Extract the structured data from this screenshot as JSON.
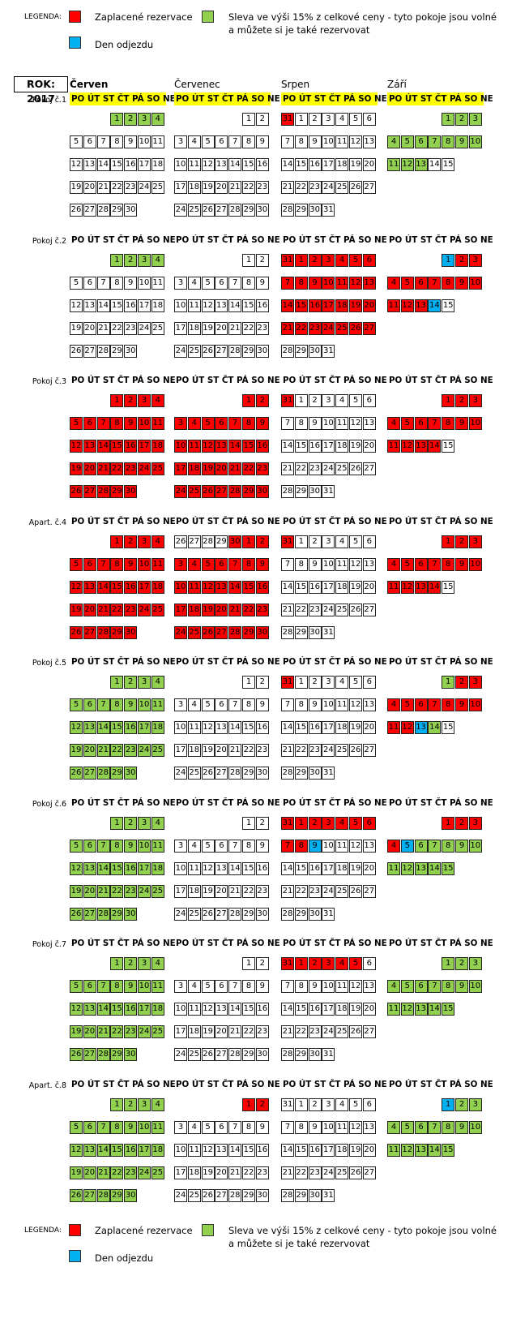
{
  "legend": {
    "label": "LEGENDA:",
    "paid": "Zaplacené rezervace",
    "discount_line1": "Sleva ve výši 15% z celkové ceny - tyto pokoje jsou volné",
    "discount_line2": "a můžete si je také rezervovat",
    "departure": "Den odjezdu"
  },
  "year_label": "ROK: 2017",
  "months": [
    "Červen",
    "Červenec",
    "Srpen",
    "Září"
  ],
  "weekday_header": "PO ÚT ST ČT PÁ SO NE",
  "colors": {
    "paid": "#ff0000",
    "discount": "#92d050",
    "departure": "#00b0f0",
    "free": "#ffffff",
    "header": "#ffff00"
  },
  "rooms": [
    {
      "label": "Pokoj č.1",
      "months": [
        {
          "d": "gggg",
          "p": ""
        },
        {
          "d": "",
          "p": ""
        },
        {
          "d": "",
          "p": "rrrb"
        },
        {
          "d": "ggggggggggggg",
          "p": ""
        }
      ]
    },
    {
      "label": "Pokoj č.2",
      "months": [
        {
          "d": "gggg",
          "p": ""
        },
        {
          "d": "",
          "p": ""
        },
        {
          "d": "rrrrrrrrrrrrrrrrrrrrrrrrrrr",
          "p": "rr"
        },
        {
          "d": "brrrrrrrrrrrrb",
          "p": ""
        }
      ]
    },
    {
      "label": "Pokoj č.3",
      "months": [
        {
          "d": "rrrrrrrrrrrrrrrrrrrrrrrrrrrrrr",
          "p": ""
        },
        {
          "d": "rrrrrrrrrrrrrrrrrrrrrrrrrrrrrr",
          "p": ""
        },
        {
          "d": "",
          "p": "r"
        },
        {
          "d": "rrrrrrrrrrrrrr",
          "p": ""
        }
      ]
    },
    {
      "label": "Apart. č.4",
      "months": [
        {
          "d": "rrrrrrrrrrrrrrrrrrrrrrrrrrrrrr",
          "p": ""
        },
        {
          "d": "rrrrrrrrrrrrrrrrrrrrrrrrrrrrrr",
          "p": "r"
        },
        {
          "d": "",
          "p": "r"
        },
        {
          "d": "rrrrrrrrrrrrrr",
          "p": ""
        }
      ]
    },
    {
      "label": "Pokoj č.5",
      "months": [
        {
          "d": "gggggggggggggggggggggggggggggg",
          "p": ""
        },
        {
          "d": "",
          "p": ""
        },
        {
          "d": "",
          "p": "rrrr"
        },
        {
          "d": "grrrrrrrrrrrbg",
          "p": ""
        }
      ]
    },
    {
      "label": "Pokoj č.6",
      "months": [
        {
          "d": "gggggggggggggggggggggggggggggg",
          "p": ""
        },
        {
          "d": "",
          "p": ""
        },
        {
          "d": "rrrrrrrrb",
          "p": "r"
        },
        {
          "d": "rrrrbgggggggggg",
          "p": ""
        }
      ]
    },
    {
      "label": "Pokoj č.7",
      "months": [
        {
          "d": "gggggggggggggggggggggggggggggg",
          "p": ""
        },
        {
          "d": "",
          "p": ""
        },
        {
          "d": "rrrrr",
          "p": "rr"
        },
        {
          "d": "ggggggggggggggg",
          "p": ""
        }
      ]
    },
    {
      "label": "Apart. č.8",
      "months": [
        {
          "d": "gggggggggggggggggggggggggggggg",
          "p": ""
        },
        {
          "d": "rr",
          "p": ""
        },
        {
          "d": "",
          "p": ""
        },
        {
          "d": "bgggggggggggggg",
          "p": ""
        }
      ]
    }
  ]
}
